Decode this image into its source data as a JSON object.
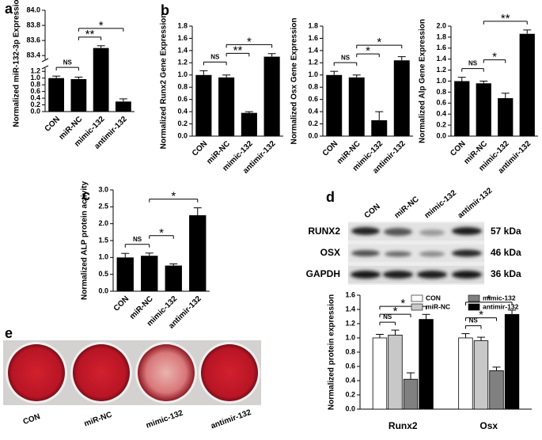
{
  "chart_data": [
    {
      "type": "bar",
      "panel": "a",
      "y_label": "Normalized miR-132-3p Expression",
      "categories": [
        "CON",
        "miR-NC",
        "mimic-132",
        "antimir-132"
      ],
      "values": [
        1.0,
        0.97,
        83.5,
        0.3
      ],
      "errors": [
        0.06,
        0.06,
        0.03,
        0.08
      ],
      "color": "#000000",
      "ylim": [
        0,
        84.0
      ],
      "ybreak": [
        1.3,
        83.35
      ],
      "yticks": [
        {
          "value": 0,
          "label": "0.0"
        },
        0.2,
        0.4,
        0.6,
        0.8,
        {
          "value": 1,
          "label": "1.0"
        },
        1.2,
        83.4,
        83.6,
        83.8,
        {
          "value": 84,
          "label": "84.0"
        }
      ],
      "annotations": [
        {
          "text": "NS",
          "from": "CON",
          "to": "miR-NC"
        },
        {
          "text": "**",
          "from": "miR-NC",
          "to": "mimic-132"
        },
        {
          "text": "*",
          "from": "miR-NC",
          "to": "antimir-132"
        }
      ]
    },
    {
      "type": "bar",
      "panel": "b",
      "y_label": "Normalized Runx2 Gene Expression",
      "categories": [
        "CON",
        "miR-NC",
        "mimic-132",
        "antimir-132"
      ],
      "values": [
        1.0,
        0.96,
        0.38,
        1.3
      ],
      "errors": [
        0.07,
        0.04,
        0.02,
        0.05
      ],
      "color": "#000000",
      "ylim": [
        0,
        1.8
      ],
      "yticks": [
        {
          "value": 0,
          "label": "0.0"
        },
        0.2,
        0.4,
        0.6,
        0.8,
        {
          "value": 1,
          "label": "1.0"
        },
        1.2,
        1.4,
        1.6,
        1.8
      ],
      "annotations": [
        {
          "text": "NS",
          "from": "CON",
          "to": "miR-NC"
        },
        {
          "text": "**",
          "from": "miR-NC",
          "to": "mimic-132"
        },
        {
          "text": "*",
          "from": "miR-NC",
          "to": "antimir-132"
        }
      ]
    },
    {
      "type": "bar",
      "y_label": "Normalized Osx Gene Expression",
      "categories": [
        "CON",
        "miR-NC",
        "mimic-132",
        "antimir-132"
      ],
      "values": [
        1.0,
        0.96,
        0.26,
        1.24
      ],
      "errors": [
        0.06,
        0.04,
        0.14,
        0.06
      ],
      "color": "#000000",
      "ylim": [
        0,
        1.8
      ],
      "yticks": [
        {
          "value": 0,
          "label": "0.0"
        },
        0.2,
        0.4,
        0.6,
        0.8,
        {
          "value": 1,
          "label": "1.0"
        },
        1.2,
        1.4,
        1.6,
        1.8
      ],
      "annotations": [
        {
          "text": "NS",
          "from": "CON",
          "to": "miR-NC"
        },
        {
          "text": "*",
          "from": "miR-NC",
          "to": "mimic-132"
        },
        {
          "text": "*",
          "from": "miR-NC",
          "to": "antimir-132"
        }
      ]
    },
    {
      "type": "bar",
      "y_label": "Normalized Alp Gene Expression",
      "categories": [
        "CON",
        "miR-NC",
        "mimic-132",
        "antimir-132"
      ],
      "values": [
        1.0,
        0.96,
        0.69,
        1.86
      ],
      "errors": [
        0.07,
        0.04,
        0.09,
        0.07
      ],
      "color": "#000000",
      "ylim": [
        0,
        2.0
      ],
      "yticks": [
        {
          "value": 0,
          "label": "0.0"
        },
        0.2,
        0.4,
        0.6,
        0.8,
        {
          "value": 1,
          "label": "1.0"
        },
        1.2,
        1.4,
        1.6,
        1.8,
        {
          "value": 2,
          "label": "2.0"
        }
      ],
      "annotations": [
        {
          "text": "NS",
          "from": "CON",
          "to": "miR-NC"
        },
        {
          "text": "*",
          "from": "miR-NC",
          "to": "mimic-132"
        },
        {
          "text": "**",
          "from": "miR-NC",
          "to": "antimir-132"
        }
      ]
    },
    {
      "type": "bar",
      "panel": "c",
      "y_label": "Normalized ALP protein activity",
      "categories": [
        "CON",
        "miR-NC",
        "mimic-132",
        "antimir-132"
      ],
      "values": [
        1.0,
        1.05,
        0.76,
        2.25
      ],
      "errors": [
        0.12,
        0.08,
        0.05,
        0.22
      ],
      "color": "#000000",
      "ylim": [
        0,
        3.0
      ],
      "yticks": [
        {
          "value": 0,
          "label": "0.0"
        },
        0.5,
        {
          "value": 1,
          "label": "1.0"
        },
        1.5,
        {
          "value": 2,
          "label": "2.0"
        },
        2.5,
        {
          "value": 3,
          "label": "3.0"
        }
      ],
      "annotations": [
        {
          "text": "NS",
          "from": "CON",
          "to": "miR-NC"
        },
        {
          "text": "*",
          "from": "miR-NC",
          "to": "mimic-132"
        },
        {
          "text": "*",
          "from": "miR-NC",
          "to": "antimir-132"
        }
      ]
    },
    {
      "type": "grouped_bar",
      "y_label": "Normalized protein expression",
      "legend": "top",
      "categories": [
        "Runx2",
        "Osx"
      ],
      "series": [
        {
          "name": "CON",
          "color": "#ffffff",
          "values": [
            1.0,
            1.0
          ],
          "errors": [
            0.05,
            0.06
          ]
        },
        {
          "name": "miR-NC",
          "color": "#c8c8c8",
          "values": [
            1.04,
            0.96
          ],
          "errors": [
            0.07,
            0.05
          ]
        },
        {
          "name": "mimic-132",
          "color": "#808080",
          "values": [
            0.42,
            0.54
          ],
          "errors": [
            0.09,
            0.05
          ]
        },
        {
          "name": "antimir-132",
          "color": "#000000",
          "values": [
            1.26,
            1.33
          ],
          "errors": [
            0.07,
            0.06
          ]
        }
      ],
      "ylim": [
        0,
        1.6
      ],
      "yticks": [
        {
          "value": 0,
          "label": "0.0"
        },
        0.2,
        0.4,
        0.6,
        0.8,
        {
          "value": 1,
          "label": "1.0"
        },
        1.2,
        1.4,
        1.6
      ],
      "annotations": [
        {
          "text": "NS",
          "category": "Runx2",
          "from": "CON",
          "to": "miR-NC"
        },
        {
          "text": "*",
          "category": "Runx2",
          "from": "CON",
          "to": "mimic-132"
        },
        {
          "text": "*",
          "category": "Runx2",
          "from": "CON",
          "to": "antimir-132"
        },
        {
          "text": "NS",
          "category": "Osx",
          "from": "CON",
          "to": "miR-NC"
        },
        {
          "text": "*",
          "category": "Osx",
          "from": "CON",
          "to": "mimic-132"
        },
        {
          "text": "*",
          "category": "Osx",
          "from": "CON",
          "to": "antimir-132"
        }
      ]
    }
  ],
  "blot": {
    "panel": "d",
    "lanes": [
      "CON",
      "miR-NC",
      "mimic-132",
      "antimir-132"
    ],
    "rows": [
      {
        "name": "RUNX2",
        "size": "57 kDa"
      },
      {
        "name": "OSX",
        "size": "46 kDa"
      },
      {
        "name": "GAPDH",
        "size": "36 kDa"
      }
    ]
  },
  "wells": {
    "panel": "e",
    "labels": [
      "CON",
      "miR-NC",
      "mimic-132",
      "antimir-132"
    ]
  }
}
